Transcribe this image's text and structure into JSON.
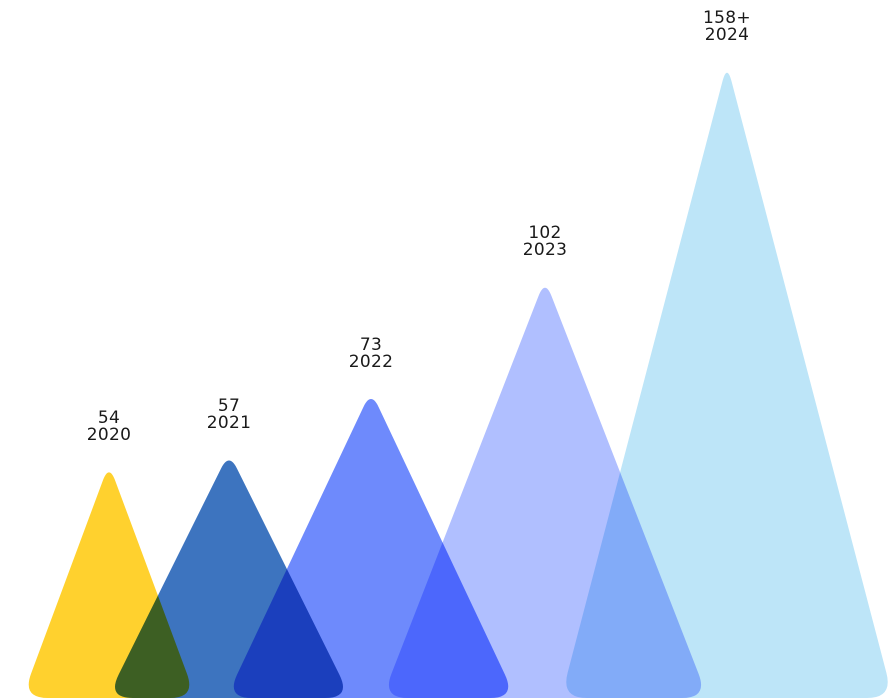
{
  "chart_data": {
    "type": "bar",
    "categories": [
      "2020",
      "2021",
      "2022",
      "2023",
      "2024"
    ],
    "values": [
      54,
      57,
      73,
      102,
      158
    ],
    "value_labels": [
      "54",
      "57",
      "73",
      "102",
      "158+"
    ],
    "colors": [
      "#FFD12E",
      "#3D74BF",
      "#6E8AFC",
      "#B0BFFF",
      "#BDE5F8"
    ],
    "ylim": [
      0,
      160
    ],
    "grid": false,
    "legend": "none"
  }
}
